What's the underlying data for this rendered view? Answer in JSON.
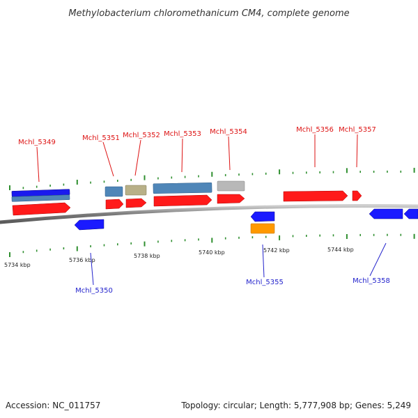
{
  "title": "Methylobacterium chloromethanicum CM4, complete genome",
  "footer": {
    "accession": "Accession: NC_011757",
    "stats": "Topology: circular; Length: 5,777,908 bp; Genes: 5,249"
  },
  "colors": {
    "cds": "#ff1a1a",
    "cds_reverse": "#1a1aff",
    "gene_steelblue": "#4f86b8",
    "gene_dark_blue": "#1a1aee",
    "gene_khaki": "#b8b088",
    "gene_gray": "#b8b8b8",
    "gene_orange": "#ff9900",
    "tick": "#2f8f2f",
    "backbone": "#8c8c8c",
    "label_forward": "#dd1111",
    "label_reverse": "#2222cc"
  },
  "kbp_labels": [
    "5734 kbp",
    "5736 kbp",
    "5738 kbp",
    "5740 kbp",
    "5742 kbp",
    "5744 kbp"
  ],
  "gene_labels": {
    "forward": [
      "Mchl_5349",
      "Mchl_5351",
      "Mchl_5352",
      "Mchl_5353",
      "Mchl_5354",
      "Mchl_5356",
      "Mchl_5357"
    ],
    "reverse": [
      "Mchl_5350",
      "Mchl_5355",
      "Mchl_5358"
    ]
  }
}
